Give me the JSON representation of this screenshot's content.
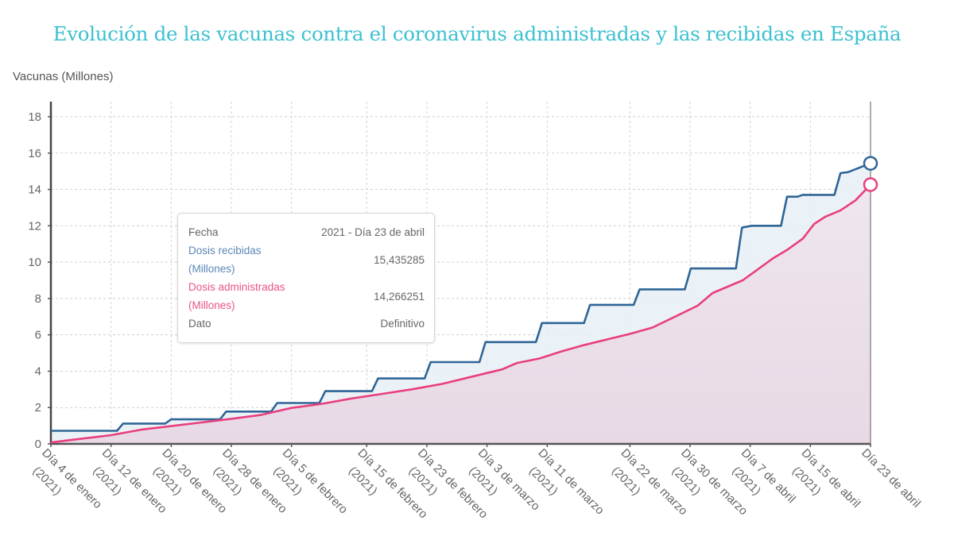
{
  "title": "Evolución de las vacunas contra el coronavirus administradas y las recibidas en España",
  "colors": {
    "title": "#3cc0d0",
    "received": "#2f6596",
    "administered": "#e83f7d",
    "received_fill": "#e8f0f6",
    "administered_fill": "#e7d9e5"
  },
  "tooltip": {
    "rows": [
      {
        "key": "Fecha",
        "value": "2021 - Día 23 de abril"
      },
      {
        "key_line1": "Dosis recibidas",
        "key_line2": "(Millones)",
        "value": "15,435285"
      },
      {
        "key_line1": "Dosis administradas",
        "key_line2": "(Millones)",
        "value": "14,266251"
      },
      {
        "key": "Dato",
        "value": "Definitivo"
      }
    ]
  },
  "chart_data": {
    "type": "area",
    "title": "Evolución de las vacunas contra el coronavirus administradas y las recibidas en España",
    "xlabel": "",
    "ylabel": "Vacunas (Millones)",
    "ylim": [
      0,
      18.8
    ],
    "yticks": [
      0,
      2,
      4,
      6,
      8,
      10,
      12,
      14,
      16,
      18
    ],
    "xlim_days": [
      0,
      109
    ],
    "x_unit": "days since 4 Jan 2021",
    "grid": true,
    "xticks": [
      {
        "day": 0,
        "line1": "Día 4 de enero",
        "line2": "(2021)"
      },
      {
        "day": 8,
        "line1": "Día 12 de enero",
        "line2": "(2021)"
      },
      {
        "day": 16,
        "line1": "Día 20 de enero",
        "line2": "(2021)"
      },
      {
        "day": 24,
        "line1": "Día 28 de enero",
        "line2": "(2021)"
      },
      {
        "day": 32,
        "line1": "Día 5 de febrero",
        "line2": "(2021)"
      },
      {
        "day": 42,
        "line1": "Día 15 de febrero",
        "line2": "(2021)"
      },
      {
        "day": 50,
        "line1": "Día 23 de febrero",
        "line2": "(2021)"
      },
      {
        "day": 58,
        "line1": "Día 3 de marzo",
        "line2": "(2021)"
      },
      {
        "day": 66,
        "line1": "Día 11 de marzo",
        "line2": "(2021)"
      },
      {
        "day": 77,
        "line1": "Día 22 de marzo",
        "line2": "(2021)"
      },
      {
        "day": 85,
        "line1": "Día 30 de marzo",
        "line2": "(2021)"
      },
      {
        "day": 93,
        "line1": "Día 7 de abril",
        "line2": "(2021)"
      },
      {
        "day": 101,
        "line1": "Día 15 de abril",
        "line2": "(2021)"
      },
      {
        "day": 109,
        "line1": "Día 23 de abril",
        "line2": ""
      }
    ],
    "series": [
      {
        "name": "Dosis recibidas (Millones)",
        "color": "#2f6596",
        "points": [
          [
            0,
            0.72
          ],
          [
            8.8,
            0.72
          ],
          [
            9.6,
            1.12
          ],
          [
            15.2,
            1.12
          ],
          [
            16.0,
            1.35
          ],
          [
            22.5,
            1.35
          ],
          [
            23.3,
            1.78
          ],
          [
            29.3,
            1.78
          ],
          [
            30.1,
            2.25
          ],
          [
            35.7,
            2.25
          ],
          [
            36.5,
            2.9
          ],
          [
            42.7,
            2.9
          ],
          [
            43.5,
            3.6
          ],
          [
            49.7,
            3.6
          ],
          [
            50.5,
            4.5
          ],
          [
            57.0,
            4.5
          ],
          [
            57.8,
            5.6
          ],
          [
            64.5,
            5.6
          ],
          [
            65.3,
            6.65
          ],
          [
            70.9,
            6.65
          ],
          [
            71.7,
            7.65
          ],
          [
            77.5,
            7.65
          ],
          [
            78.3,
            8.5
          ],
          [
            84.3,
            8.5
          ],
          [
            85.1,
            9.65
          ],
          [
            91.1,
            9.65
          ],
          [
            91.9,
            11.9
          ],
          [
            93.2,
            12.0
          ],
          [
            97.1,
            12.0
          ],
          [
            97.9,
            13.6
          ],
          [
            99.3,
            13.6
          ],
          [
            100.0,
            13.7
          ],
          [
            104.2,
            13.7
          ],
          [
            105.0,
            14.9
          ],
          [
            106.0,
            14.95
          ],
          [
            109,
            15.435285
          ]
        ]
      },
      {
        "name": "Dosis administradas (Millones)",
        "color": "#e83f7d",
        "points": [
          [
            0,
            0.08
          ],
          [
            4,
            0.28
          ],
          [
            8,
            0.48
          ],
          [
            12,
            0.78
          ],
          [
            16,
            0.98
          ],
          [
            20,
            1.18
          ],
          [
            24,
            1.38
          ],
          [
            28,
            1.6
          ],
          [
            32,
            1.98
          ],
          [
            36,
            2.2
          ],
          [
            40,
            2.5
          ],
          [
            44,
            2.75
          ],
          [
            48,
            3.0
          ],
          [
            52,
            3.3
          ],
          [
            56,
            3.7
          ],
          [
            60,
            4.1
          ],
          [
            62,
            4.45
          ],
          [
            65,
            4.7
          ],
          [
            68,
            5.1
          ],
          [
            71,
            5.45
          ],
          [
            74,
            5.75
          ],
          [
            77,
            6.05
          ],
          [
            80,
            6.4
          ],
          [
            83,
            7.0
          ],
          [
            86,
            7.6
          ],
          [
            88,
            8.3
          ],
          [
            90,
            8.65
          ],
          [
            92,
            9.0
          ],
          [
            94,
            9.6
          ],
          [
            96,
            10.2
          ],
          [
            98,
            10.7
          ],
          [
            100,
            11.3
          ],
          [
            101.5,
            12.1
          ],
          [
            103,
            12.5
          ],
          [
            105,
            12.85
          ],
          [
            107,
            13.4
          ],
          [
            109,
            14.266251
          ]
        ]
      }
    ]
  }
}
